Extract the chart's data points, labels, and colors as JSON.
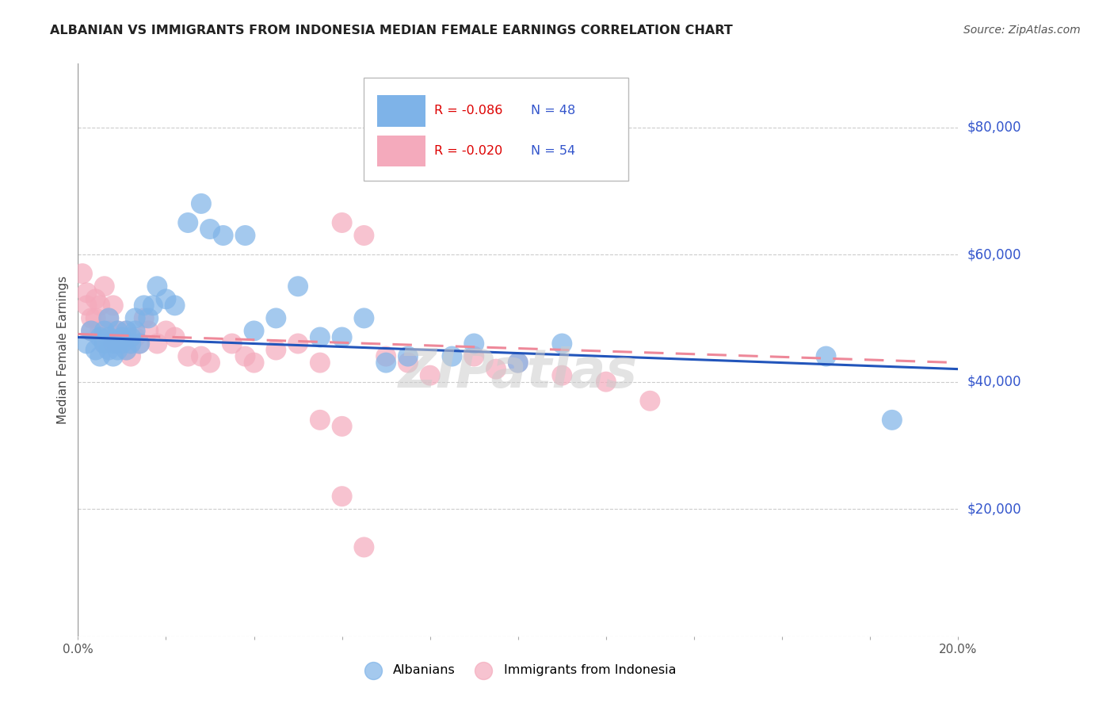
{
  "title": "ALBANIAN VS IMMIGRANTS FROM INDONESIA MEDIAN FEMALE EARNINGS CORRELATION CHART",
  "source": "Source: ZipAtlas.com",
  "ylabel": "Median Female Earnings",
  "xlim": [
    0.0,
    0.2
  ],
  "ylim": [
    0,
    90000
  ],
  "yticks": [
    0,
    20000,
    40000,
    60000,
    80000
  ],
  "ytick_labels": [
    "",
    "$20,000",
    "$40,000",
    "$60,000",
    "$80,000"
  ],
  "blue_R": "-0.086",
  "blue_N": "48",
  "pink_R": "-0.020",
  "pink_N": "54",
  "blue_color": "#7EB3E8",
  "pink_color": "#F4AABC",
  "blue_line_color": "#2255BB",
  "pink_line_color": "#EE8899",
  "legend_label_blue": "Albanians",
  "legend_label_pink": "Immigrants from Indonesia",
  "watermark": "ZIPatlas",
  "blue_scatter_x": [
    0.002,
    0.003,
    0.004,
    0.005,
    0.005,
    0.006,
    0.006,
    0.007,
    0.007,
    0.007,
    0.008,
    0.008,
    0.009,
    0.009,
    0.01,
    0.01,
    0.011,
    0.011,
    0.012,
    0.012,
    0.013,
    0.013,
    0.014,
    0.015,
    0.016,
    0.017,
    0.018,
    0.02,
    0.022,
    0.025,
    0.028,
    0.03,
    0.033,
    0.038,
    0.04,
    0.045,
    0.05,
    0.055,
    0.06,
    0.065,
    0.07,
    0.075,
    0.085,
    0.09,
    0.1,
    0.11,
    0.17,
    0.185
  ],
  "blue_scatter_y": [
    46000,
    48000,
    45000,
    44000,
    47000,
    46000,
    48000,
    45000,
    47000,
    50000,
    44000,
    46000,
    45000,
    48000,
    46000,
    47000,
    45000,
    48000,
    47000,
    46000,
    50000,
    48000,
    46000,
    52000,
    50000,
    52000,
    55000,
    53000,
    52000,
    65000,
    68000,
    64000,
    63000,
    63000,
    48000,
    50000,
    55000,
    47000,
    47000,
    50000,
    43000,
    44000,
    44000,
    46000,
    43000,
    46000,
    44000,
    34000
  ],
  "pink_scatter_x": [
    0.001,
    0.002,
    0.002,
    0.003,
    0.003,
    0.004,
    0.004,
    0.005,
    0.005,
    0.006,
    0.006,
    0.007,
    0.007,
    0.008,
    0.008,
    0.009,
    0.009,
    0.01,
    0.01,
    0.011,
    0.011,
    0.012,
    0.012,
    0.013,
    0.014,
    0.015,
    0.016,
    0.018,
    0.02,
    0.022,
    0.025,
    0.028,
    0.03,
    0.035,
    0.038,
    0.04,
    0.045,
    0.05,
    0.055,
    0.06,
    0.065,
    0.07,
    0.075,
    0.08,
    0.09,
    0.095,
    0.1,
    0.11,
    0.12,
    0.13,
    0.055,
    0.06,
    0.06,
    0.065
  ],
  "pink_scatter_y": [
    57000,
    54000,
    52000,
    50000,
    48000,
    53000,
    50000,
    48000,
    52000,
    46000,
    55000,
    48000,
    50000,
    46000,
    52000,
    48000,
    46000,
    47000,
    46000,
    45000,
    48000,
    46000,
    44000,
    47000,
    46000,
    50000,
    48000,
    46000,
    48000,
    47000,
    44000,
    44000,
    43000,
    46000,
    44000,
    43000,
    45000,
    46000,
    43000,
    65000,
    63000,
    44000,
    43000,
    41000,
    44000,
    42000,
    43000,
    41000,
    40000,
    37000,
    34000,
    33000,
    22000,
    14000
  ],
  "blue_trend_x": [
    0.0,
    0.2
  ],
  "blue_trend_y": [
    47000,
    42000
  ],
  "pink_trend_x": [
    0.0,
    0.2
  ],
  "pink_trend_y": [
    47500,
    43000
  ]
}
